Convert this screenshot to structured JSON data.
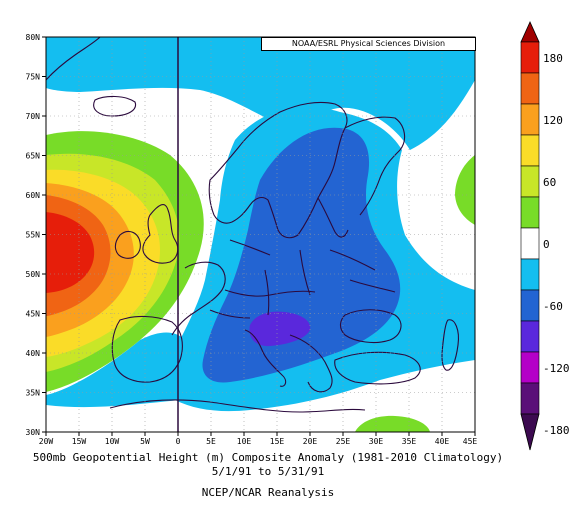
{
  "map": {
    "credit": "NOAA/ESRL Physical Sciences Division",
    "lat_labels": [
      "80N",
      "75N",
      "70N",
      "65N",
      "60N",
      "55N",
      "50N",
      "45N",
      "40N",
      "35N",
      "30N"
    ],
    "lon_labels": [
      "20W",
      "15W",
      "10W",
      "5W",
      "0",
      "5E",
      "10E",
      "15E",
      "20E",
      "25E",
      "30E",
      "35E",
      "40E",
      "45E"
    ],
    "extent": {
      "lon_min": -20,
      "lon_max": 45,
      "lat_min": 30,
      "lat_max": 80
    },
    "variable": "500mb geopotential height composite anomaly",
    "units": "m"
  },
  "colorbar": {
    "labels": [
      "180",
      "120",
      "60",
      "0",
      "-60",
      "-120",
      "-180"
    ],
    "levels": [
      -180,
      -150,
      -120,
      -90,
      -60,
      -30,
      30,
      60,
      90,
      120,
      150,
      180
    ],
    "colors": [
      "#5a0f78",
      "#b400c8",
      "#5a28dc",
      "#2364d2",
      "#14bef0",
      "#ffffff",
      "#78dc28",
      "#c8e628",
      "#fadc28",
      "#faa01e",
      "#f06414",
      "#e61e0a",
      "#a00000"
    ]
  },
  "caption": {
    "title": "500mb Geopotential Height (m) Composite Anomaly (1981-2010 Climatology)",
    "dates": "5/1/91  to 5/31/91",
    "source": "NCEP/NCAR Reanalysis"
  }
}
